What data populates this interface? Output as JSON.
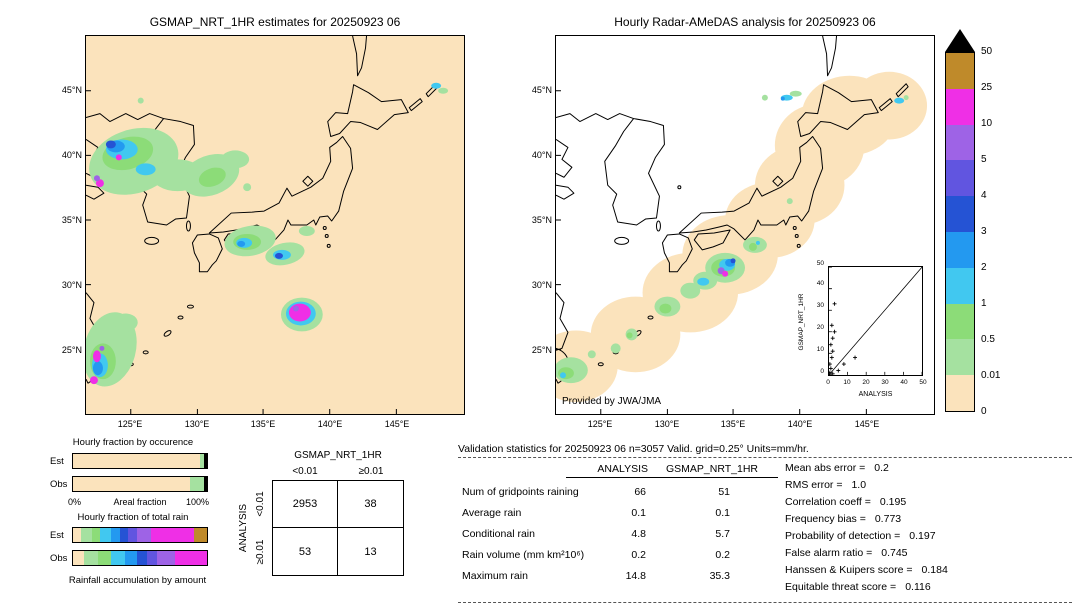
{
  "left_map": {
    "title": "GSMAP_NRT_1HR estimates for 20250923 06",
    "lat_ticks": [
      "45°N",
      "40°N",
      "35°N",
      "30°N",
      "25°N"
    ],
    "lon_ticks": [
      "125°E",
      "130°E",
      "135°E",
      "140°E",
      "145°E"
    ],
    "background_color": "#fbe3bc"
  },
  "right_map": {
    "title": "Hourly Radar-AMeDAS analysis for 20250923 06",
    "lat_ticks": [
      "45°N",
      "40°N",
      "35°N",
      "30°N",
      "25°N"
    ],
    "lon_ticks": [
      "125°E",
      "130°E",
      "135°E",
      "140°E",
      "145°E"
    ],
    "credit": "Provided by JWA/JMA",
    "background_color": "#ffffff",
    "coverage_color": "#fbe3bc"
  },
  "colorbar": {
    "labels": [
      "50",
      "25",
      "10",
      "5",
      "4",
      "3",
      "2",
      "1",
      "0.5",
      "0.01",
      "0"
    ],
    "colors_bottom_to_top": [
      "#fbe3bc",
      "#a5e1a0",
      "#8cdc78",
      "#41c8f0",
      "#2399f0",
      "#2553d4",
      "#6155e0",
      "#9e63e6",
      "#ef2fe6",
      "#bf8a2a"
    ],
    "overflow_color": "#000000"
  },
  "occurrence_chart": {
    "title": "Hourly fraction by occurence",
    "x_min_label": "0%",
    "x_max_label": "100%",
    "x_axis_label": "Areal fraction",
    "rows": [
      {
        "label": "Est",
        "segments": [
          {
            "cls": "0",
            "color": "#fbe3bc",
            "pct": 94.5
          },
          {
            "cls": "0.01-0.5",
            "color": "#a5e1a0",
            "pct": 3
          },
          {
            "cls": "rest",
            "color": "#000000",
            "pct": 2.5
          }
        ]
      },
      {
        "label": "Obs",
        "segments": [
          {
            "cls": "0",
            "color": "#fbe3bc",
            "pct": 87
          },
          {
            "cls": "0.01-0.5",
            "color": "#a5e1a0",
            "pct": 10.5
          },
          {
            "cls": "rest",
            "color": "#000000",
            "pct": 2.5
          }
        ]
      }
    ]
  },
  "total_rain_chart": {
    "title": "Hourly fraction of total rain",
    "footer": "Rainfall accumulation by amount",
    "rows": [
      {
        "label": "Est",
        "segments": [
          {
            "cls": "0",
            "color": "#fbe3bc",
            "pct": 6
          },
          {
            "cls": "0.01-0.5",
            "color": "#a5e1a0",
            "pct": 8
          },
          {
            "cls": "0.5-1",
            "color": "#8cdc78",
            "pct": 6
          },
          {
            "cls": "1-2",
            "color": "#41c8f0",
            "pct": 8
          },
          {
            "cls": "2-3",
            "color": "#2399f0",
            "pct": 7
          },
          {
            "cls": "3-4",
            "color": "#2553d4",
            "pct": 6
          },
          {
            "cls": "4-5",
            "color": "#6155e0",
            "pct": 7
          },
          {
            "cls": "5-10",
            "color": "#9e63e6",
            "pct": 10
          },
          {
            "cls": "10-25",
            "color": "#ef2fe6",
            "pct": 32
          },
          {
            "cls": "25-50",
            "color": "#bf8a2a",
            "pct": 10
          }
        ]
      },
      {
        "label": "Obs",
        "segments": [
          {
            "cls": "0",
            "color": "#fbe3bc",
            "pct": 8
          },
          {
            "cls": "0.01-0.5",
            "color": "#a5e1a0",
            "pct": 11
          },
          {
            "cls": "0.5-1",
            "color": "#8cdc78",
            "pct": 9
          },
          {
            "cls": "1-2",
            "color": "#41c8f0",
            "pct": 11
          },
          {
            "cls": "2-3",
            "color": "#2399f0",
            "pct": 9
          },
          {
            "cls": "3-4",
            "color": "#2553d4",
            "pct": 7
          },
          {
            "cls": "4-5",
            "color": "#6155e0",
            "pct": 8
          },
          {
            "cls": "5-10",
            "color": "#9e63e6",
            "pct": 13
          },
          {
            "cls": "10-25",
            "color": "#ef2fe6",
            "pct": 24
          }
        ]
      }
    ]
  },
  "contingency": {
    "col_group_label": "GSMAP_NRT_1HR",
    "row_group_label": "ANALYSIS",
    "col_labels": [
      "<0.01",
      "≥0.01"
    ],
    "row_labels": [
      "<0.01",
      "≥0.01"
    ],
    "cells": [
      [
        "2953",
        "38"
      ],
      [
        "53",
        "13"
      ]
    ]
  },
  "stats": {
    "header": "Validation statistics for 20250923 06  n=3057 Valid. grid=0.25° Units=mm/hr.",
    "col_headers": [
      "ANALYSIS",
      "GSMAP_NRT_1HR"
    ],
    "rows": [
      {
        "label": "Num of gridpoints raining",
        "analysis": "66",
        "gsmap": "51"
      },
      {
        "label": "Average rain",
        "analysis": "0.1",
        "gsmap": "0.1"
      },
      {
        "label": "Conditional rain",
        "analysis": "4.8",
        "gsmap": "5.7"
      },
      {
        "label": "Rain volume (mm km²10⁶)",
        "analysis": "0.2",
        "gsmap": "0.2"
      },
      {
        "label": "Maximum rain",
        "analysis": "14.8",
        "gsmap": "35.3"
      }
    ],
    "metrics": [
      {
        "label": "Mean abs error =",
        "value": "0.2"
      },
      {
        "label": "RMS error =",
        "value": "1.0"
      },
      {
        "label": "Correlation coeff =",
        "value": "0.195"
      },
      {
        "label": "Frequency bias =",
        "value": "0.773"
      },
      {
        "label": "Probability of detection =",
        "value": "0.197"
      },
      {
        "label": "False alarm ratio =",
        "value": "0.745"
      },
      {
        "label": "Hanssen & Kuipers score =",
        "value": "0.184"
      },
      {
        "label": "Equitable threat score =",
        "value": "0.116"
      }
    ]
  },
  "inset_scatter": {
    "xlabel": "ANALYSIS",
    "ylabel": "GSMAP_NRT_1HR",
    "x_ticks": [
      "0",
      "10",
      "20",
      "30",
      "40",
      "50"
    ],
    "y_ticks": [
      "0",
      "10",
      "20",
      "30",
      "40",
      "50"
    ],
    "xlim": [
      0,
      50
    ],
    "ylim": [
      0,
      50
    ],
    "points": [
      [
        0.5,
        1
      ],
      [
        1,
        3
      ],
      [
        0.5,
        5
      ],
      [
        1.5,
        8
      ],
      [
        2,
        11
      ],
      [
        1,
        14
      ],
      [
        2,
        17
      ],
      [
        3,
        20
      ],
      [
        1.5,
        23
      ],
      [
        3,
        33
      ],
      [
        5,
        2
      ],
      [
        8,
        5
      ],
      [
        14,
        8
      ],
      [
        2,
        0.5
      ]
    ]
  },
  "chart_data": [
    {
      "type": "heatmap",
      "name": "gsmap_estimates_map",
      "title": "GSMAP_NRT_1HR estimates for 20250923 06",
      "x_ticks": [
        "125°E",
        "130°E",
        "135°E",
        "140°E",
        "145°E"
      ],
      "y_ticks": [
        "45°N",
        "40°N",
        "35°N",
        "30°N",
        "25°N"
      ],
      "colorscale_levels_mm_hr": [
        0,
        0.01,
        0.5,
        1,
        2,
        3,
        4,
        5,
        10,
        25,
        50
      ],
      "legend_position": "right"
    },
    {
      "type": "heatmap",
      "name": "radar_amedas_map",
      "title": "Hourly Radar-AMeDAS analysis for 20250923 06",
      "x_ticks": [
        "125°E",
        "130°E",
        "135°E",
        "140°E",
        "145°E"
      ],
      "y_ticks": [
        "45°N",
        "40°N",
        "35°N",
        "30°N",
        "25°N"
      ],
      "colorscale_levels_mm_hr": [
        0,
        0.01,
        0.5,
        1,
        2,
        3,
        4,
        5,
        10,
        25,
        50
      ],
      "annotation": "Provided by JWA/JMA"
    },
    {
      "type": "bar",
      "name": "hourly_fraction_by_occurrence",
      "title": "Hourly fraction by occurence",
      "orientation": "horizontal_stacked",
      "categories": [
        "Est",
        "Obs"
      ],
      "xlabel": "Areal fraction",
      "xlim": [
        0,
        100
      ],
      "series": [
        {
          "name": "Est",
          "segments_pct": {
            "0": 94.5,
            "0.01-0.5": 3,
            "rest": 2.5
          }
        },
        {
          "name": "Obs",
          "segments_pct": {
            "0": 87,
            "0.01-0.5": 10.5,
            "rest": 2.5
          }
        }
      ]
    },
    {
      "type": "bar",
      "name": "hourly_fraction_of_total_rain",
      "title": "Hourly fraction of total rain",
      "orientation": "horizontal_stacked",
      "categories": [
        "Est",
        "Obs"
      ],
      "xlabel": "Rainfall accumulation by amount",
      "xlim": [
        0,
        100
      ],
      "series": [
        {
          "name": "Est",
          "segments_pct": {
            "0": 6,
            "0.01-0.5": 8,
            "0.5-1": 6,
            "1-2": 8,
            "2-3": 7,
            "3-4": 6,
            "4-5": 7,
            "5-10": 10,
            "10-25": 32,
            "25-50": 10
          }
        },
        {
          "name": "Obs",
          "segments_pct": {
            "0": 8,
            "0.01-0.5": 11,
            "0.5-1": 9,
            "1-2": 11,
            "2-3": 9,
            "3-4": 7,
            "4-5": 8,
            "5-10": 13,
            "10-25": 24
          }
        }
      ]
    },
    {
      "type": "table",
      "name": "contingency_table",
      "col_group": "GSMAP_NRT_1HR",
      "row_group": "ANALYSIS",
      "columns": [
        "<0.01",
        "≥0.01"
      ],
      "row_labels": [
        "<0.01",
        "≥0.01"
      ],
      "values": [
        [
          2953,
          38
        ],
        [
          53,
          13
        ]
      ]
    },
    {
      "type": "table",
      "name": "validation_statistics",
      "title": "Validation statistics for 20250923 06  n=3057 Valid. grid=0.25° Units=mm/hr.",
      "columns": [
        "",
        "ANALYSIS",
        "GSMAP_NRT_1HR"
      ],
      "rows": [
        [
          "Num of gridpoints raining",
          66,
          51
        ],
        [
          "Average rain",
          0.1,
          0.1
        ],
        [
          "Conditional rain",
          4.8,
          5.7
        ],
        [
          "Rain volume (mm km²10⁶)",
          0.2,
          0.2
        ],
        [
          "Maximum rain",
          14.8,
          35.3
        ]
      ]
    },
    {
      "type": "table",
      "name": "skill_scores",
      "rows": [
        [
          "Mean abs error",
          0.2
        ],
        [
          "RMS error",
          1.0
        ],
        [
          "Correlation coeff",
          0.195
        ],
        [
          "Frequency bias",
          0.773
        ],
        [
          "Probability of detection",
          0.197
        ],
        [
          "False alarm ratio",
          0.745
        ],
        [
          "Hanssen & Kuipers score",
          0.184
        ],
        [
          "Equitable threat score",
          0.116
        ]
      ]
    },
    {
      "type": "scatter",
      "name": "inset_scatter",
      "xlabel": "ANALYSIS",
      "ylabel": "GSMAP_NRT_1HR",
      "xlim": [
        0,
        50
      ],
      "ylim": [
        0,
        50
      ],
      "marker": "+",
      "diagonal_line": true,
      "points": [
        [
          0.5,
          1
        ],
        [
          1,
          3
        ],
        [
          0.5,
          5
        ],
        [
          1.5,
          8
        ],
        [
          2,
          11
        ],
        [
          1,
          14
        ],
        [
          2,
          17
        ],
        [
          3,
          20
        ],
        [
          1.5,
          23
        ],
        [
          3,
          33
        ],
        [
          5,
          2
        ],
        [
          8,
          5
        ],
        [
          14,
          8
        ],
        [
          2,
          0.5
        ]
      ]
    }
  ]
}
